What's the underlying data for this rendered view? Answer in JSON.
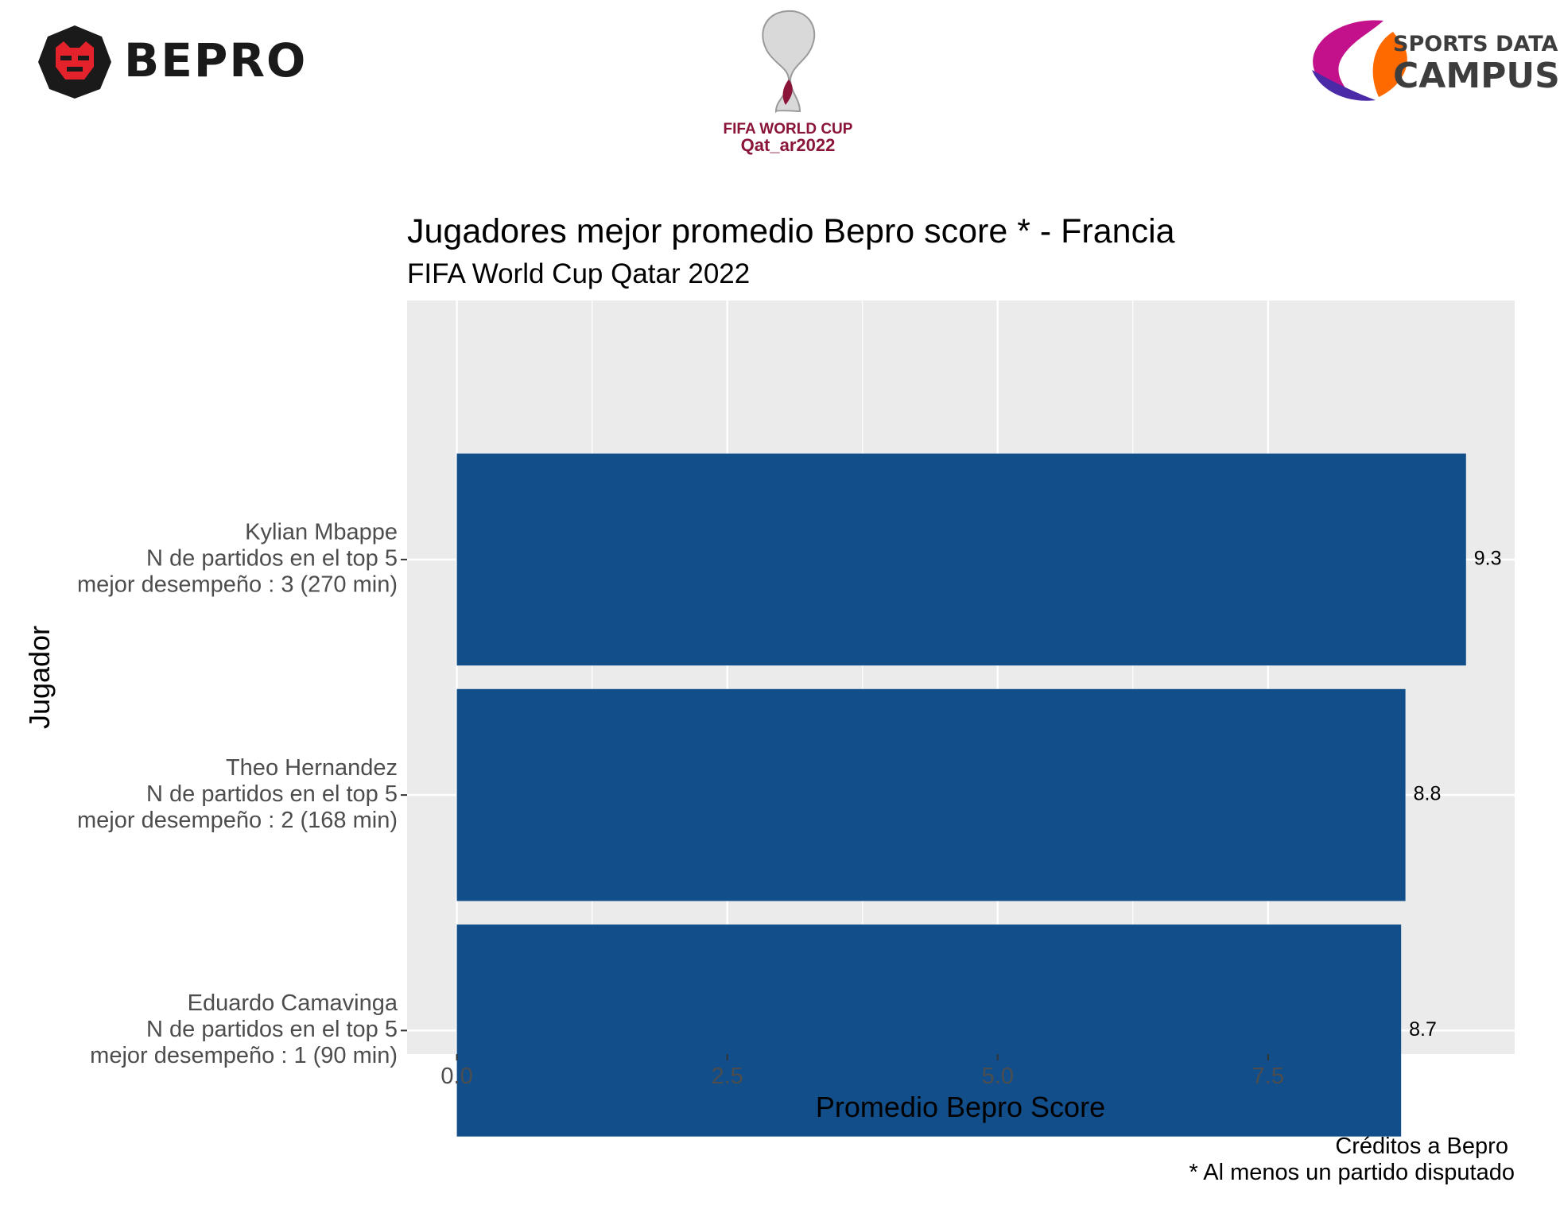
{
  "logos": {
    "bepro": {
      "text": "BEPRO",
      "colors": {
        "badge": "#1a1a1a",
        "face": "#e3222b"
      }
    },
    "fifa": {
      "line1": "FIFA WORLD CUP",
      "line2": "Qat_ar2022",
      "colors": {
        "text": "#8a1538"
      }
    },
    "sdc": {
      "line1": "SPORTS DATA",
      "line2": "CAMPUS",
      "colors": {
        "text": "#3d3d3d",
        "swirl_a": "#ff6a00",
        "swirl_b": "#c2118a",
        "swirl_c": "#4b2aa8"
      }
    }
  },
  "chart_data": {
    "type": "bar",
    "orientation": "horizontal",
    "title": "Jugadores mejor promedio Bepro score * - Francia",
    "subtitle": "FIFA World Cup Qatar 2022",
    "xlabel": "Promedio Bepro Score",
    "ylabel": "Jugador",
    "categories": [
      {
        "lines": [
          "Kylian Mbappe",
          "N de partidos en el top 5",
          "mejor desempeño : 3 (270 min)"
        ]
      },
      {
        "lines": [
          "Theo Hernandez",
          "N de partidos en el top 5",
          "mejor desempeño : 2 (168 min)"
        ]
      },
      {
        "lines": [
          "Eduardo Camavinga",
          "N de partidos en el top 5",
          "mejor desempeño : 1 (90 min)"
        ]
      }
    ],
    "values": [
      9.33,
      8.77,
      8.73
    ],
    "data_labels": [
      "9.3",
      "8.8",
      "8.7"
    ],
    "xlim": [
      -0.46,
      9.78
    ],
    "xticks": [
      0,
      2.5,
      5,
      7.5
    ],
    "xtick_labels": [
      "0.0",
      "2.5",
      "5.0",
      "7.5"
    ],
    "grid": true,
    "legend": "none",
    "caption": [
      "Créditos a Bepro ",
      "* Al menos un partido disputado"
    ],
    "colors": {
      "bar": "#124e89",
      "panel": "#ebebeb",
      "grid": "#ffffff",
      "tick_text": "#4d4d4d",
      "text": "#000000"
    }
  }
}
